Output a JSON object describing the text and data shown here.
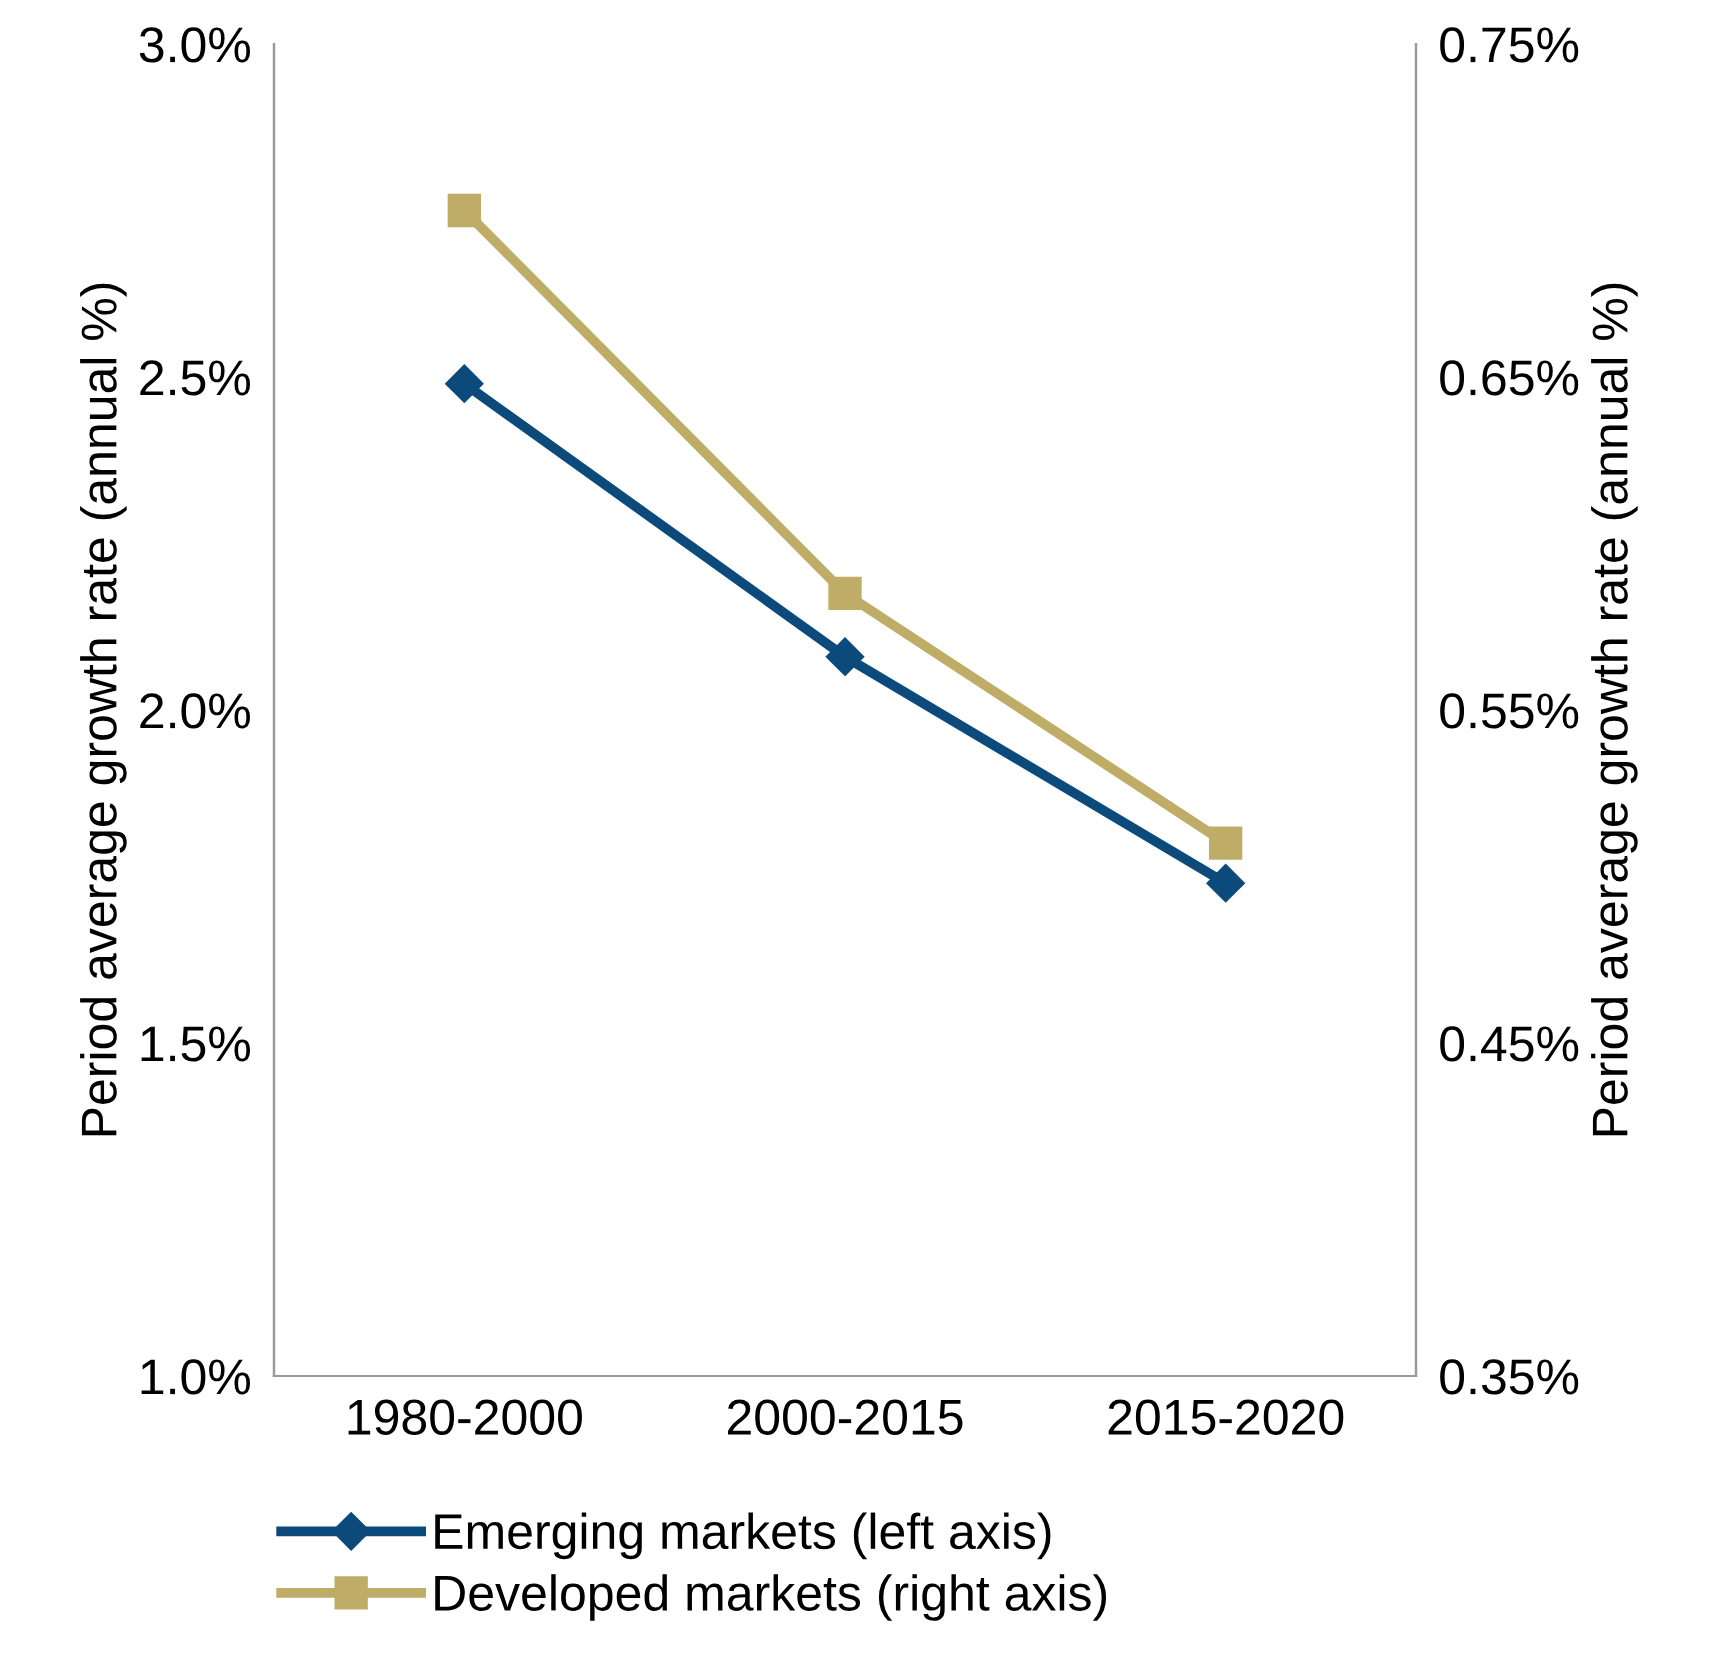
{
  "chart_data": {
    "type": "line",
    "ylabel": "Period average growth rate (annual %)",
    "y2label": "Period average growth rate (annual %)",
    "categories": [
      "1980-2000",
      "2000-2015",
      "2015-2020"
    ],
    "series": [
      {
        "name": "Emerging markets (left axis)",
        "color": "#0b4a7b",
        "marker": "diamond",
        "values": [
          2.49,
          2.08,
          1.74
        ]
      },
      {
        "name": "Developed markets (right axis)",
        "color": "#bfad67",
        "marker": "square",
        "axis": "y2",
        "values": [
          0.7,
          0.585,
          0.51
        ]
      }
    ],
    "ylim": [
      1.0,
      3.0
    ],
    "yticks": [
      {
        "value": 1.0,
        "label": "1.0%"
      },
      {
        "value": 1.5,
        "label": "1.5%"
      },
      {
        "value": 2.0,
        "label": "2.0%"
      },
      {
        "value": 2.5,
        "label": "2.5%"
      },
      {
        "value": 3.0,
        "label": "3.0%"
      }
    ],
    "y2lim": [
      0.35,
      0.75
    ],
    "y2ticks": [
      {
        "value": 0.35,
        "label": "0.35%"
      },
      {
        "value": 0.45,
        "label": "0.45%"
      },
      {
        "value": 0.55,
        "label": "0.55%"
      },
      {
        "value": 0.65,
        "label": "0.65%"
      },
      {
        "value": 0.75,
        "label": "0.75%"
      }
    ],
    "legend": "bottom",
    "line_style": "solid",
    "grid": false
  }
}
